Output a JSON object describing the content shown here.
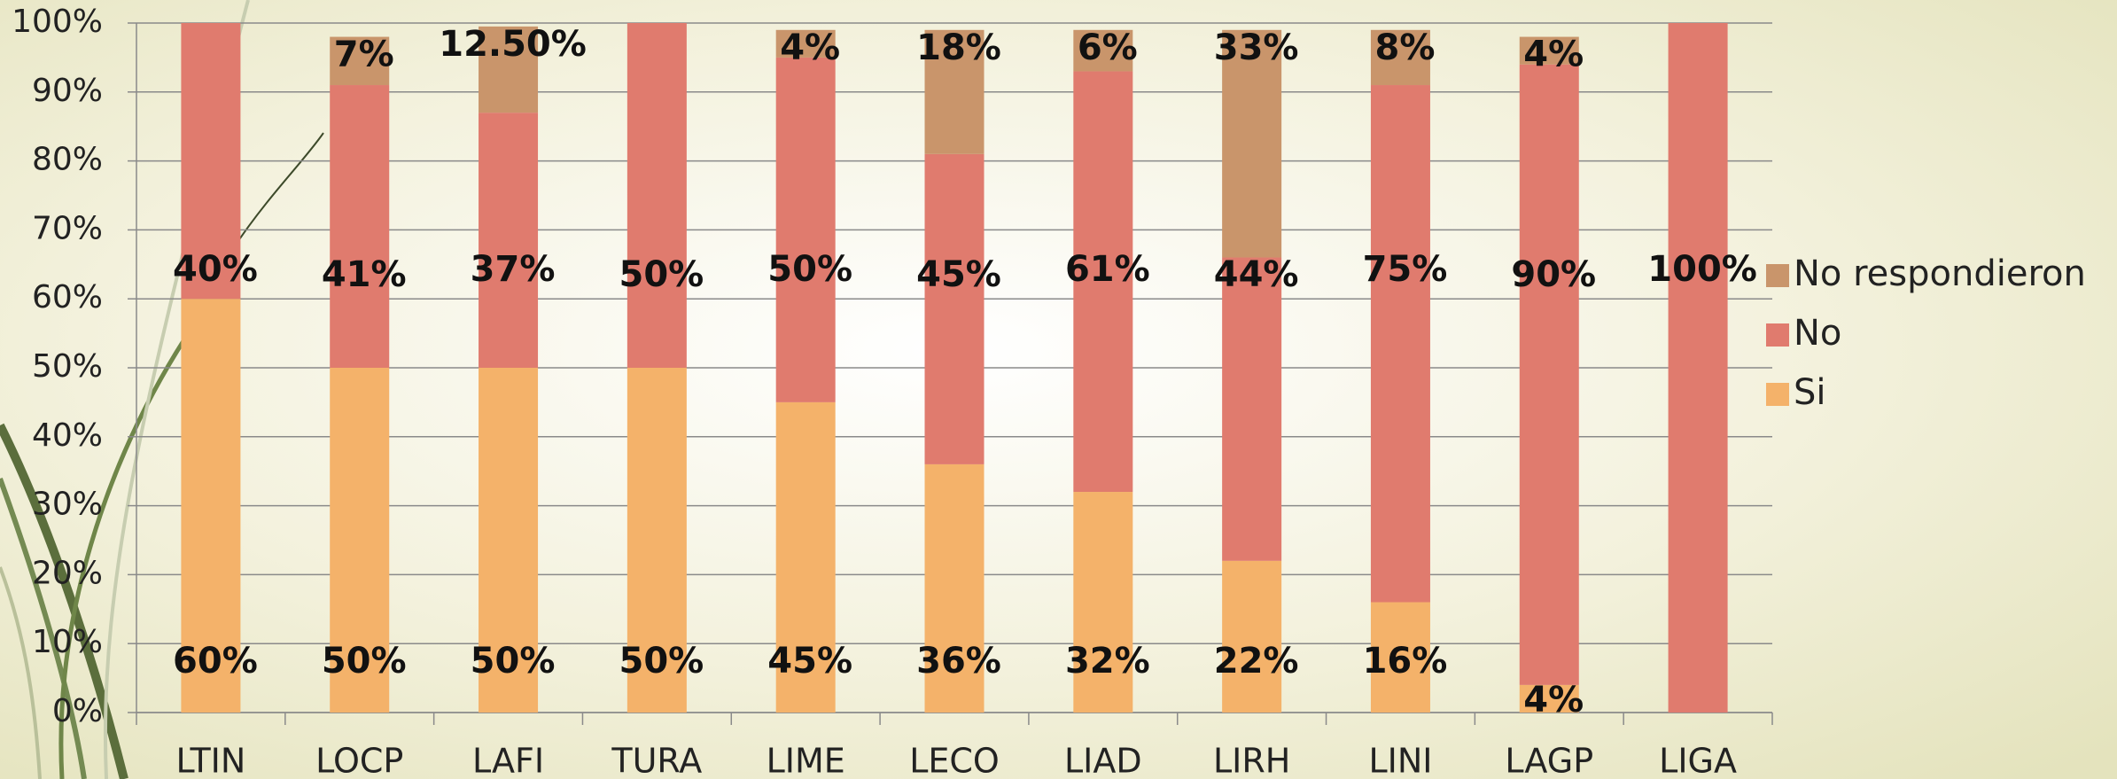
{
  "chart_data": {
    "type": "stacked_bar",
    "categories": [
      "LTIN",
      "LOCP",
      "LAFI",
      "TURA",
      "LIME",
      "LECO",
      "LIAD",
      "LIRH",
      "LINI",
      "LAGP",
      "LIGA"
    ],
    "series": [
      {
        "name": "Si",
        "color": "#f4b26a",
        "values": [
          60,
          50,
          50,
          50,
          45,
          36,
          32,
          22,
          16,
          4,
          0
        ],
        "value_labels": [
          "60%",
          "50%",
          "50%",
          "50%",
          "45%",
          "36%",
          "32%",
          "22%",
          "16%",
          "4%",
          null
        ]
      },
      {
        "name": "No",
        "color": "#e07b6e",
        "values": [
          40,
          41,
          37,
          50,
          50,
          45,
          61,
          44,
          75,
          90,
          100
        ],
        "value_labels": [
          "40%",
          "41%",
          "37%",
          "50%",
          "50%",
          "45%",
          "61%",
          "44%",
          "75%",
          "90%",
          "100%"
        ]
      },
      {
        "name": "No respondieron",
        "color": "#c9956b",
        "values": [
          0,
          7,
          12.5,
          0,
          4,
          18,
          6,
          33,
          8,
          4,
          0
        ],
        "value_labels": [
          null,
          "7%",
          "12.50%",
          null,
          "4%",
          "18%",
          "6%",
          "33%",
          "8%",
          "4%",
          null
        ]
      }
    ],
    "ylim": [
      0,
      100
    ],
    "yticks": [
      {
        "value": 0,
        "label": "0%"
      },
      {
        "value": 10,
        "label": "10%"
      },
      {
        "value": 20,
        "label": "20%"
      },
      {
        "value": 30,
        "label": "30%"
      },
      {
        "value": 40,
        "label": "40%"
      },
      {
        "value": 50,
        "label": "50%"
      },
      {
        "value": 60,
        "label": "60%"
      },
      {
        "value": 70,
        "label": "70%"
      },
      {
        "value": 80,
        "label": "80%"
      },
      {
        "value": 90,
        "label": "90%"
      },
      {
        "value": 100,
        "label": "100%"
      }
    ],
    "grid": true,
    "legend": "right"
  }
}
